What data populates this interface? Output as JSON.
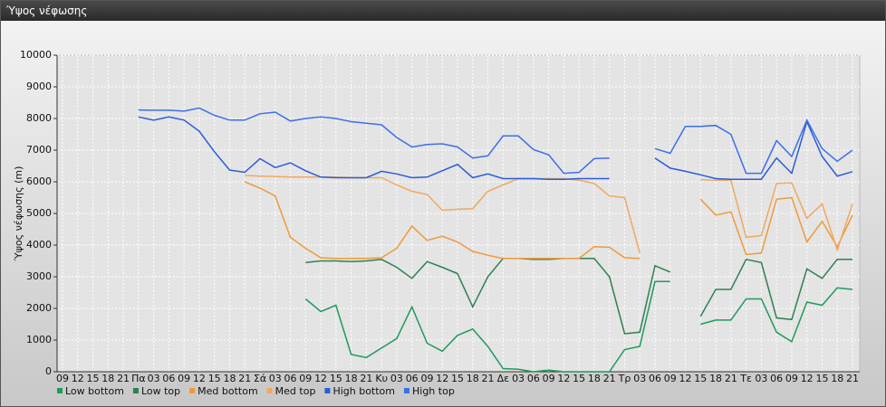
{
  "chart_data": {
    "type": "line",
    "title": "Ύψος νέφωσης",
    "y_label": "Ύψος νέφωσης (m)",
    "categories": [
      "09",
      "12",
      "15",
      "18",
      "21",
      "Πα",
      "03",
      "06",
      "09",
      "12",
      "15",
      "18",
      "21",
      "Σά",
      "03",
      "06",
      "09",
      "12",
      "15",
      "18",
      "21",
      "Κυ",
      "03",
      "06",
      "09",
      "12",
      "15",
      "18",
      "21",
      "Δε",
      "03",
      "06",
      "09",
      "12",
      "15",
      "18",
      "21",
      "Τρ",
      "03",
      "06",
      "09",
      "12",
      "15",
      "18",
      "21",
      "Τε",
      "03",
      "06",
      "09",
      "12",
      "15",
      "18",
      "21"
    ],
    "ylim": [
      0,
      10000
    ],
    "yticks": [
      0,
      1000,
      2000,
      3000,
      4000,
      5000,
      6000,
      7000,
      8000,
      9000,
      10000
    ],
    "grid": true,
    "series": [
      {
        "name": "Low bottom",
        "color": "#1f9a5c",
        "values": [
          null,
          null,
          null,
          null,
          null,
          null,
          null,
          null,
          null,
          null,
          null,
          null,
          null,
          null,
          null,
          null,
          2300,
          1900,
          2100,
          550,
          450,
          750,
          1050,
          2050,
          900,
          650,
          1150,
          1350,
          800,
          100,
          80,
          0,
          50,
          0,
          0,
          0,
          0,
          700,
          800,
          2850,
          2850,
          null,
          1500,
          1630,
          1630,
          2300,
          2300,
          1250,
          950,
          2200,
          2100,
          2650,
          2600
        ]
      },
      {
        "name": "Low top",
        "color": "#2e8050",
        "values": [
          null,
          null,
          null,
          null,
          null,
          null,
          null,
          null,
          null,
          null,
          null,
          null,
          null,
          null,
          null,
          null,
          3450,
          3500,
          3500,
          3480,
          3500,
          3550,
          3300,
          2950,
          3480,
          3300,
          3100,
          2050,
          3000,
          3580,
          3580,
          3550,
          3550,
          3580,
          3580,
          3580,
          3000,
          1200,
          1250,
          3350,
          3150,
          null,
          1750,
          2600,
          2600,
          3550,
          3450,
          1700,
          1650,
          3250,
          2950,
          3550,
          3550
        ]
      },
      {
        "name": "Med bottom",
        "color": "#ee9a3a",
        "values": [
          null,
          null,
          null,
          null,
          null,
          null,
          null,
          null,
          null,
          null,
          null,
          null,
          6000,
          5800,
          5550,
          4250,
          3900,
          3600,
          3580,
          3580,
          3580,
          3600,
          3900,
          4600,
          4150,
          4280,
          4100,
          3800,
          3680,
          3580,
          3580,
          3580,
          3580,
          3580,
          3580,
          3950,
          3930,
          3600,
          3580,
          null,
          null,
          null,
          5450,
          4950,
          5050,
          3700,
          3750,
          5450,
          5500,
          4100,
          4750,
          3950,
          4950
        ]
      },
      {
        "name": "Med top",
        "color": "#f0a860",
        "values": [
          null,
          null,
          null,
          null,
          null,
          null,
          null,
          null,
          null,
          null,
          null,
          null,
          6200,
          6180,
          6170,
          6150,
          6150,
          6150,
          6150,
          6130,
          6130,
          6130,
          5900,
          5700,
          5600,
          5100,
          5130,
          5150,
          5700,
          5900,
          6100,
          6100,
          6100,
          6100,
          6050,
          5950,
          5550,
          5500,
          3750,
          null,
          null,
          null,
          6070,
          6050,
          6050,
          4250,
          4300,
          5950,
          5970,
          4850,
          5300,
          3850,
          5300
        ]
      },
      {
        "name": "High bottom",
        "color": "#2a5cd8",
        "values": [
          null,
          null,
          null,
          null,
          null,
          8050,
          7950,
          8050,
          7950,
          7600,
          6950,
          6370,
          6300,
          6730,
          6450,
          6600,
          6350,
          6150,
          6130,
          6130,
          6130,
          6330,
          6250,
          6130,
          6150,
          6350,
          6550,
          6130,
          6250,
          6100,
          6100,
          6100,
          6080,
          6080,
          6100,
          6100,
          6100,
          null,
          null,
          6750,
          6430,
          6330,
          6220,
          6100,
          6080,
          6080,
          6080,
          6750,
          6270,
          7900,
          6800,
          6180,
          6320
        ]
      },
      {
        "name": "High top",
        "color": "#3a70e8",
        "values": [
          null,
          null,
          null,
          null,
          null,
          8270,
          8260,
          8260,
          8230,
          8330,
          8100,
          7950,
          7950,
          8150,
          8200,
          7920,
          8000,
          8050,
          8000,
          7900,
          7850,
          7800,
          7400,
          7100,
          7180,
          7200,
          7100,
          6750,
          6820,
          7450,
          7450,
          7020,
          6850,
          6270,
          6300,
          6730,
          6750,
          null,
          null,
          7050,
          6900,
          7750,
          7750,
          7780,
          7500,
          6270,
          6270,
          7300,
          6800,
          7950,
          7050,
          6650,
          7000
        ]
      }
    ]
  }
}
